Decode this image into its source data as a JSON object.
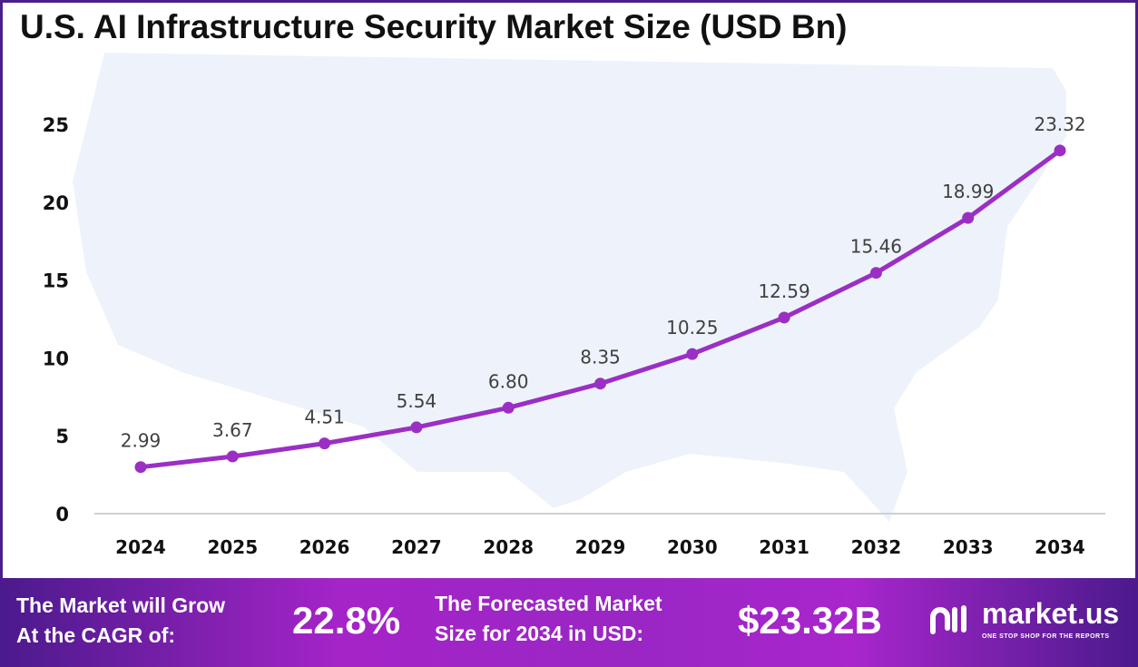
{
  "chart_data": {
    "type": "line",
    "title": "U.S. AI Infrastructure Security Market Size (USD Bn)",
    "categories": [
      "2024",
      "2025",
      "2026",
      "2027",
      "2028",
      "2029",
      "2030",
      "2031",
      "2032",
      "2033",
      "2034"
    ],
    "values": [
      2.99,
      3.67,
      4.51,
      5.54,
      6.8,
      8.35,
      10.25,
      12.59,
      15.46,
      18.99,
      23.32
    ],
    "data_labels": [
      "2.99",
      "3.67",
      "4.51",
      "5.54",
      "6.80",
      "8.35",
      "10.25",
      "12.59",
      "15.46",
      "18.99",
      "23.32"
    ],
    "yticks": [
      "0",
      "5",
      "10",
      "15",
      "20",
      "25"
    ],
    "ylim": [
      0,
      25
    ],
    "xlabel": "",
    "ylabel": "",
    "grid": false,
    "line_color": "#9b2fc4"
  },
  "footer": {
    "cagr_text_1": "The Market will Grow",
    "cagr_text_2": "At the CAGR of:",
    "cagr_value": "22.8%",
    "forecast_text_1": "The Forecasted Market",
    "forecast_text_2": "Size for 2034 in USD:",
    "forecast_value": "$23.32B",
    "logo_name": "market.us",
    "logo_tagline": "ONE STOP SHOP FOR THE REPORTS"
  }
}
